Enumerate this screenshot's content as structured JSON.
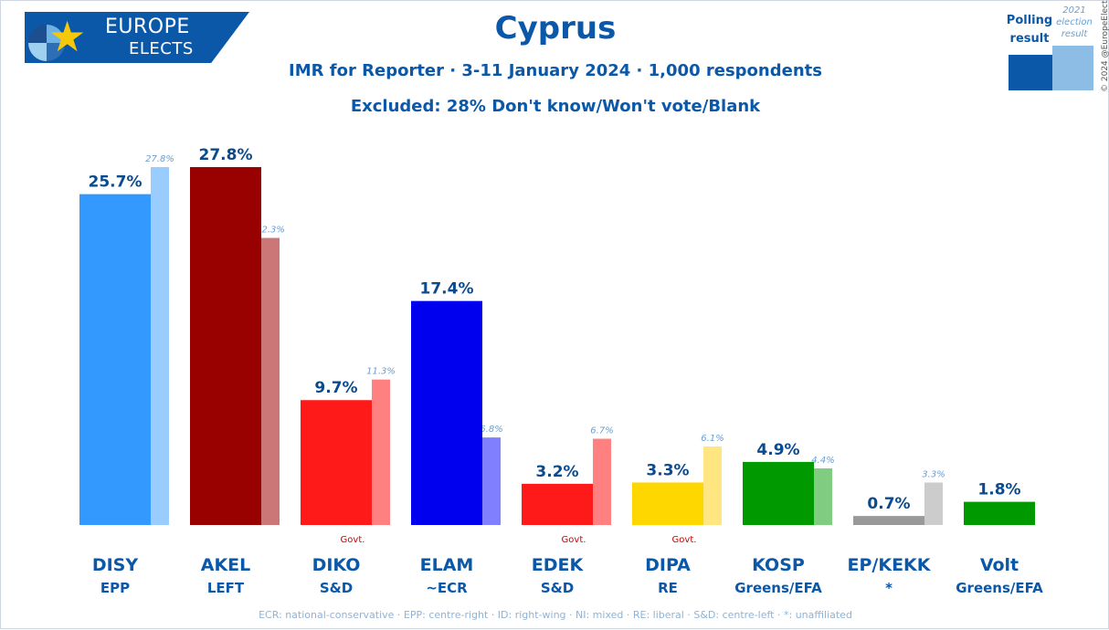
{
  "logo": {
    "line1": "EUROPE",
    "line2": "ELECTS",
    "star": "★"
  },
  "header": {
    "title": "Cyprus",
    "subtitle": "IMR for Reporter · 3-11 January 2024 · 1,000 respondents",
    "excluded": "Excluded: 28% Don't know/Won't vote/Blank"
  },
  "legend": {
    "poll_label": "Polling result",
    "prev_label": "2021 election result"
  },
  "copyright": "© 2024 @EuropeElects",
  "footer": "ECR: national-conservative · EPP: centre-right · ID: right-wing · NI: mixed · RE: liberal · S&D: centre-left · *: unaffiliated",
  "chart_data": {
    "type": "bar",
    "title": "Cyprus",
    "categories": [
      "DISY",
      "AKEL",
      "DIKO",
      "ELAM",
      "EDEK",
      "DIPA",
      "KOSP",
      "EP/KEKK",
      "Volt"
    ],
    "groups": [
      "EPP",
      "LEFT",
      "S&D",
      "~ECR",
      "S&D",
      "RE",
      "Greens/EFA",
      "*",
      "Greens/EFA"
    ],
    "government": [
      false,
      false,
      true,
      false,
      true,
      true,
      false,
      false,
      false
    ],
    "govt_label": "Govt.",
    "series": [
      {
        "name": "Polling result",
        "values": [
          25.7,
          27.8,
          9.7,
          17.4,
          3.2,
          3.3,
          4.9,
          0.7,
          1.8
        ],
        "labels": [
          "25.7%",
          "27.8%",
          "9.7%",
          "17.4%",
          "3.2%",
          "3.3%",
          "4.9%",
          "0.7%",
          "1.8%"
        ]
      },
      {
        "name": "2021 election result",
        "values": [
          27.8,
          22.3,
          11.3,
          6.8,
          6.7,
          6.1,
          4.4,
          3.3,
          null
        ],
        "labels": [
          "27.8%",
          "22.3%",
          "11.3%",
          "6.8%",
          "6.7%",
          "6.1%",
          "4.4%",
          "3.3%",
          null
        ]
      }
    ],
    "colors": [
      "#3399ff",
      "#990000",
      "#ff1a1a",
      "#0000ee",
      "#ff1a1a",
      "#ffd700",
      "#009900",
      "#999999",
      "#009900"
    ],
    "prev_colors": [
      "#99ccff",
      "#cc7777",
      "#ff8080",
      "#8080ff",
      "#ff8080",
      "#ffe680",
      "#80cc80",
      "#cccccc",
      null
    ],
    "ylim": [
      0,
      28
    ],
    "xlabel": "",
    "ylabel": "",
    "grid": false,
    "legend": "top-right"
  }
}
